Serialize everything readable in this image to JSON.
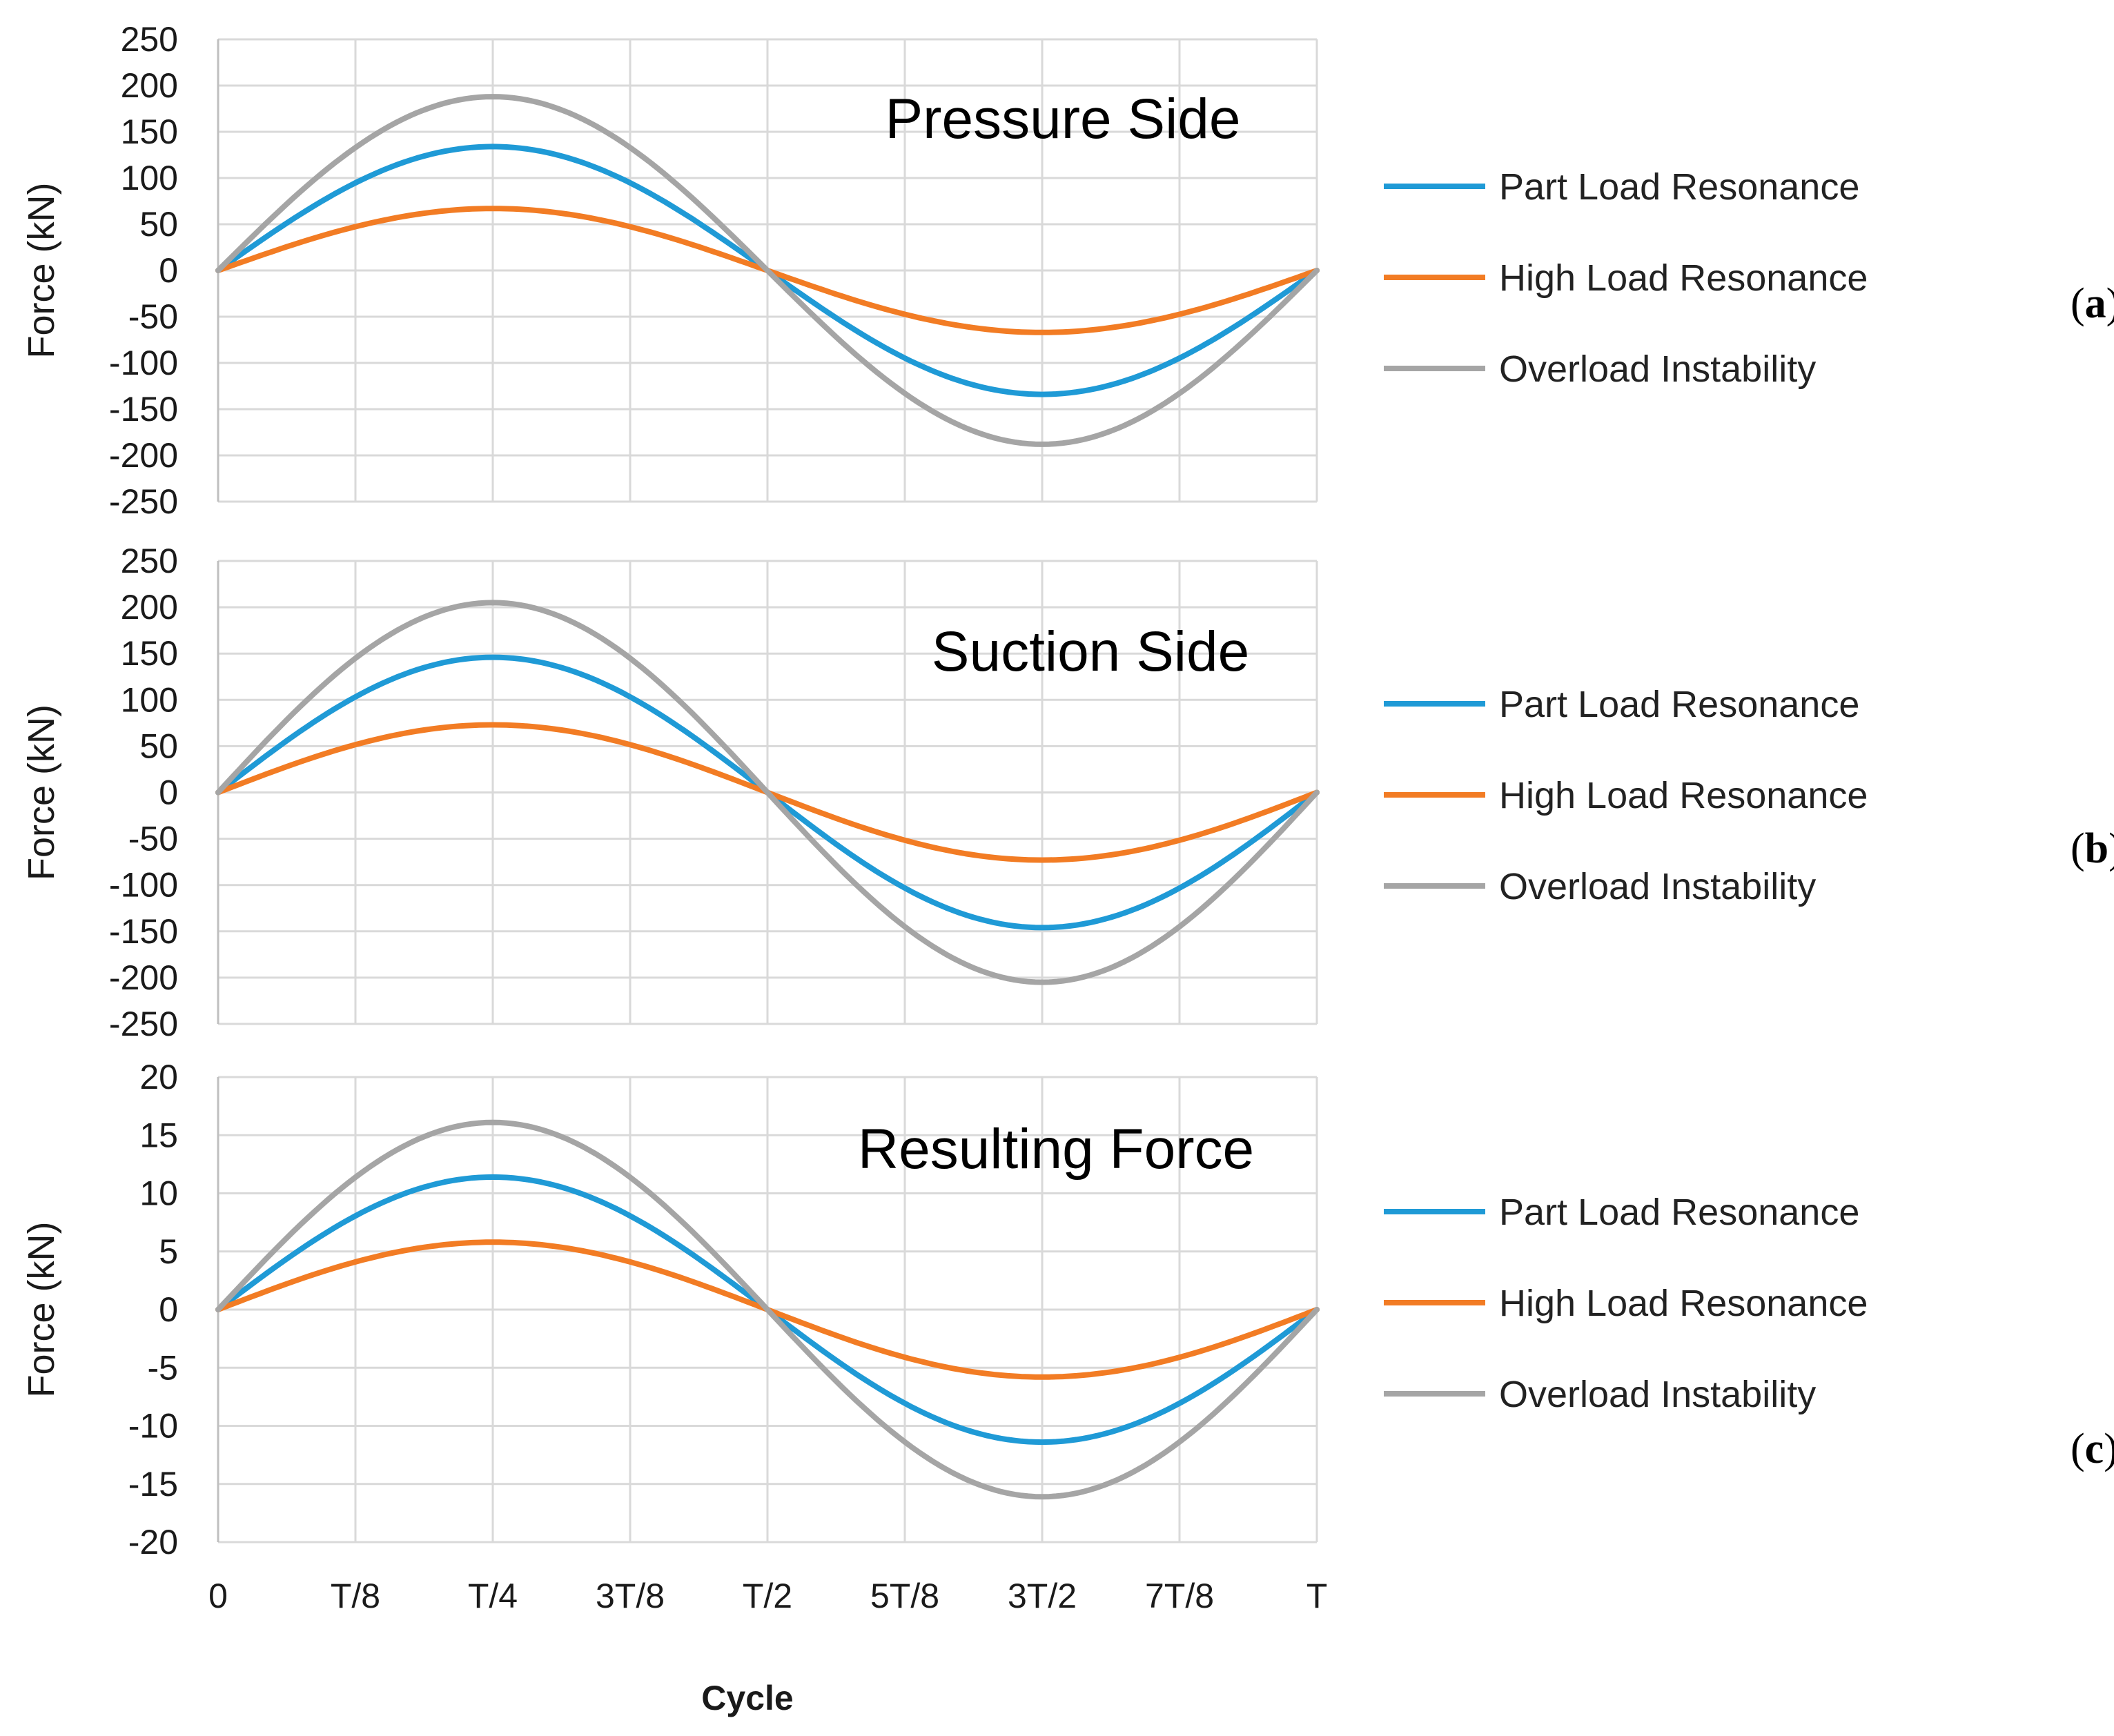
{
  "chart_data": [
    {
      "type": "line",
      "title": "Pressure Side",
      "panel_label": "a",
      "ylabel": "Force (kN)",
      "xlabel": "",
      "ylim": [
        -250,
        250
      ],
      "yticks": [
        250,
        200,
        150,
        100,
        50,
        0,
        -50,
        -100,
        -150,
        -200,
        -250
      ],
      "ytick_labels": [
        "250",
        "200",
        "150",
        "100",
        "50",
        "0",
        "-50",
        "-100",
        "-150",
        "-200",
        "-250"
      ],
      "x_categories": [
        "0",
        "T/8",
        "T/4",
        "3T/8",
        "T/2",
        "5T/8",
        "3T/2",
        "7T/8",
        "T"
      ],
      "show_x_tick_labels": false,
      "grid": true,
      "series": [
        {
          "name": "Part Load Resonance",
          "color": "#1f9ad6",
          "amplitude": 134
        },
        {
          "name": "High Load Resonance",
          "color": "#f27c24",
          "amplitude": 67
        },
        {
          "name": "Overload Instability",
          "color": "#a5a5a5",
          "amplitude": 188
        }
      ]
    },
    {
      "type": "line",
      "title": "Suction Side",
      "panel_label": "b",
      "ylabel": "Force (kN)",
      "xlabel": "",
      "ylim": [
        -250,
        250
      ],
      "yticks": [
        250,
        200,
        150,
        100,
        50,
        0,
        -50,
        -100,
        -150,
        -200,
        -250
      ],
      "ytick_labels": [
        "250",
        "200",
        "150",
        "100",
        "50",
        "0",
        "-50",
        "-100",
        "-150",
        "-200",
        "-250"
      ],
      "x_categories": [
        "0",
        "T/8",
        "T/4",
        "3T/8",
        "T/2",
        "5T/8",
        "3T/2",
        "7T/8",
        "T"
      ],
      "show_x_tick_labels": false,
      "grid": true,
      "series": [
        {
          "name": "Part Load Resonance",
          "color": "#1f9ad6",
          "amplitude": 146
        },
        {
          "name": "High Load Resonance",
          "color": "#f27c24",
          "amplitude": 73
        },
        {
          "name": "Overload Instability",
          "color": "#a5a5a5",
          "amplitude": 205
        }
      ]
    },
    {
      "type": "line",
      "title": "Resulting Force",
      "panel_label": "c",
      "ylabel": "Force (kN)",
      "xlabel": "Cycle",
      "ylim": [
        -20,
        20
      ],
      "yticks": [
        20,
        15,
        10,
        5,
        0,
        -5,
        -10,
        -15,
        -20
      ],
      "ytick_labels": [
        "20",
        "15",
        "10",
        "5",
        "0",
        "-5",
        "-10",
        "-15",
        "-20"
      ],
      "x_categories": [
        "0",
        "T/8",
        "T/4",
        "3T/8",
        "T/2",
        "5T/8",
        "3T/2",
        "7T/8",
        "T"
      ],
      "show_x_tick_labels": true,
      "grid": true,
      "series": [
        {
          "name": "Part Load Resonance",
          "color": "#1f9ad6",
          "amplitude": 11.4
        },
        {
          "name": "High Load Resonance",
          "color": "#f27c24",
          "amplitude": 5.8
        },
        {
          "name": "Overload Instability",
          "color": "#a5a5a5",
          "amplitude": 16.1
        }
      ]
    }
  ]
}
